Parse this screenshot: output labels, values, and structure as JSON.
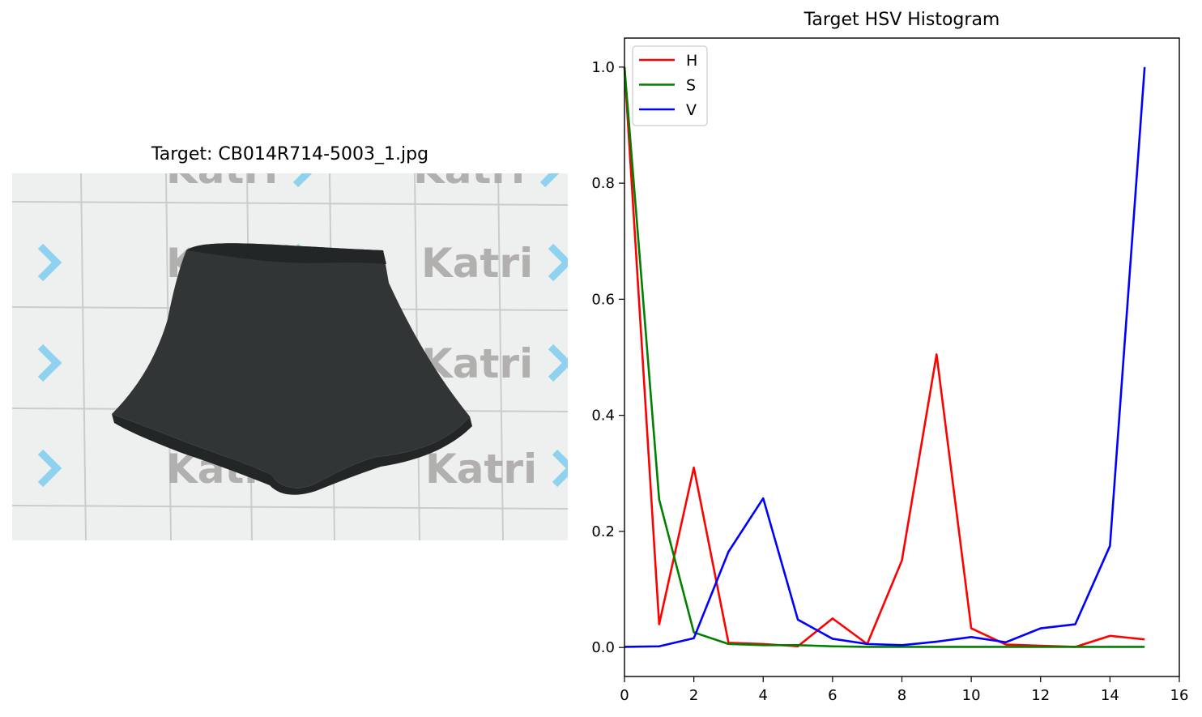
{
  "left_panel": {
    "title": "Target: CB014R714-5003_1.jpg",
    "photo": {
      "subject": "black-ruffle-shorts",
      "backdrop_watermark_text": "Katri",
      "colors": {
        "backdrop": "#eef0ef",
        "grid_line": "#c9cccd",
        "watermark_text": "#a7a5a5",
        "watermark_arrow": "#8fd2f0",
        "garment": "#323535",
        "garment_shadow": "#232626"
      }
    }
  },
  "chart_data": {
    "type": "line",
    "title": "Target HSV Histogram",
    "xlabel": "",
    "ylabel": "",
    "x": [
      0,
      1,
      2,
      3,
      4,
      5,
      6,
      7,
      8,
      9,
      10,
      11,
      12,
      13,
      14,
      15
    ],
    "xlim": [
      0,
      16
    ],
    "ylim": [
      -0.05,
      1.05
    ],
    "xticks": [
      "0",
      "2",
      "4",
      "6",
      "8",
      "10",
      "12",
      "14",
      "16"
    ],
    "yticks": [
      "0.0",
      "0.2",
      "0.4",
      "0.6",
      "0.8",
      "1.0"
    ],
    "grid": false,
    "legend": "top-left",
    "series": [
      {
        "name": "H",
        "color": "#ff0000",
        "values": [
          1.0,
          0.04,
          0.31,
          0.008,
          0.006,
          0.002,
          0.05,
          0.006,
          0.15,
          0.505,
          0.033,
          0.005,
          0.003,
          0.001,
          0.02,
          0.014
        ]
      },
      {
        "name": "S",
        "color": "#008000",
        "values": [
          1.0,
          0.255,
          0.026,
          0.006,
          0.004,
          0.004,
          0.002,
          0.001,
          0.001,
          0.001,
          0.001,
          0.001,
          0.001,
          0.001,
          0.001,
          0.001
        ]
      },
      {
        "name": "V",
        "color": "#0000ff",
        "values": [
          0.001,
          0.002,
          0.016,
          0.165,
          0.257,
          0.048,
          0.015,
          0.006,
          0.004,
          0.01,
          0.018,
          0.009,
          0.033,
          0.04,
          0.175,
          1.0
        ]
      }
    ]
  }
}
